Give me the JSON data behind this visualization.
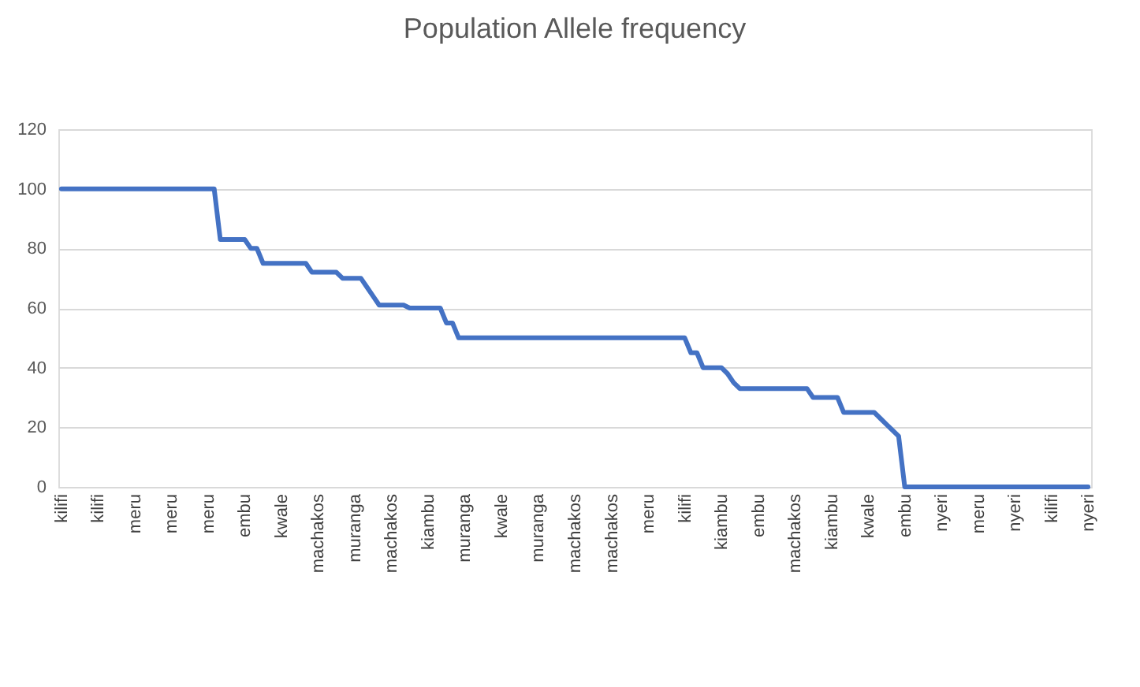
{
  "chart_data": {
    "type": "line",
    "title": "Population Allele frequency",
    "categories": [
      "kilifi",
      null,
      null,
      null,
      null,
      null,
      "kilifi",
      null,
      null,
      null,
      null,
      null,
      "meru",
      null,
      null,
      null,
      null,
      null,
      "meru",
      null,
      null,
      null,
      null,
      null,
      "meru",
      null,
      null,
      null,
      null,
      null,
      "embu",
      null,
      null,
      null,
      null,
      null,
      "kwale",
      null,
      null,
      null,
      null,
      null,
      "machakos",
      null,
      null,
      null,
      null,
      null,
      "muranga",
      null,
      null,
      null,
      null,
      null,
      "machakos",
      null,
      null,
      null,
      null,
      null,
      "kiambu",
      null,
      null,
      null,
      null,
      null,
      "muranga",
      null,
      null,
      null,
      null,
      null,
      "kwale",
      null,
      null,
      null,
      null,
      null,
      "muranga",
      null,
      null,
      null,
      null,
      null,
      "machakos",
      null,
      null,
      null,
      null,
      null,
      "machakos",
      null,
      null,
      null,
      null,
      null,
      "meru",
      null,
      null,
      null,
      null,
      null,
      "kilifi",
      null,
      null,
      null,
      null,
      null,
      "kiambu",
      null,
      null,
      null,
      null,
      null,
      "embu",
      null,
      null,
      null,
      null,
      null,
      "machakos",
      null,
      null,
      null,
      null,
      null,
      "kiambu",
      null,
      null,
      null,
      null,
      null,
      "kwale",
      null,
      null,
      null,
      null,
      null,
      "embu",
      null,
      null,
      null,
      null,
      null,
      "nyeri",
      null,
      null,
      null,
      null,
      null,
      "meru",
      null,
      null,
      null,
      null,
      null,
      "nyeri",
      null,
      null,
      null,
      null,
      null,
      "kilifi",
      null,
      null,
      null,
      null,
      null,
      "nyeri"
    ],
    "series": [
      {
        "color": "#4472c4",
        "values": [
          100,
          100,
          100,
          100,
          100,
          100,
          100,
          100,
          100,
          100,
          100,
          100,
          100,
          100,
          100,
          100,
          100,
          100,
          100,
          100,
          100,
          100,
          100,
          100,
          100,
          100,
          83,
          83,
          83,
          83,
          83,
          80,
          80,
          75,
          75,
          75,
          75,
          75,
          75,
          75,
          75,
          72,
          72,
          72,
          72,
          72,
          70,
          70,
          70,
          70,
          67,
          64,
          61,
          61,
          61,
          61,
          61,
          60,
          60,
          60,
          60,
          60,
          60,
          55,
          55,
          50,
          50,
          50,
          50,
          50,
          50,
          50,
          50,
          50,
          50,
          50,
          50,
          50,
          50,
          50,
          50,
          50,
          50,
          50,
          50,
          50,
          50,
          50,
          50,
          50,
          50,
          50,
          50,
          50,
          50,
          50,
          50,
          50,
          50,
          50,
          50,
          50,
          50,
          45,
          45,
          40,
          40,
          40,
          40,
          38,
          35,
          33,
          33,
          33,
          33,
          33,
          33,
          33,
          33,
          33,
          33,
          33,
          33,
          30,
          30,
          30,
          30,
          30,
          25,
          25,
          25,
          25,
          25,
          25,
          23,
          21,
          19,
          17,
          0,
          0,
          0,
          0,
          0,
          0,
          0,
          0,
          0,
          0,
          0,
          0,
          0,
          0,
          0,
          0,
          0,
          0,
          0,
          0,
          0,
          0,
          0,
          0,
          0,
          0,
          0,
          0,
          0,
          0,
          0
        ]
      }
    ],
    "ylim": [
      0,
      120
    ],
    "yticks": [
      0,
      20,
      40,
      60,
      80,
      100,
      120
    ],
    "grid": "y",
    "legend": false,
    "marker": "none",
    "line_style": "solid"
  }
}
